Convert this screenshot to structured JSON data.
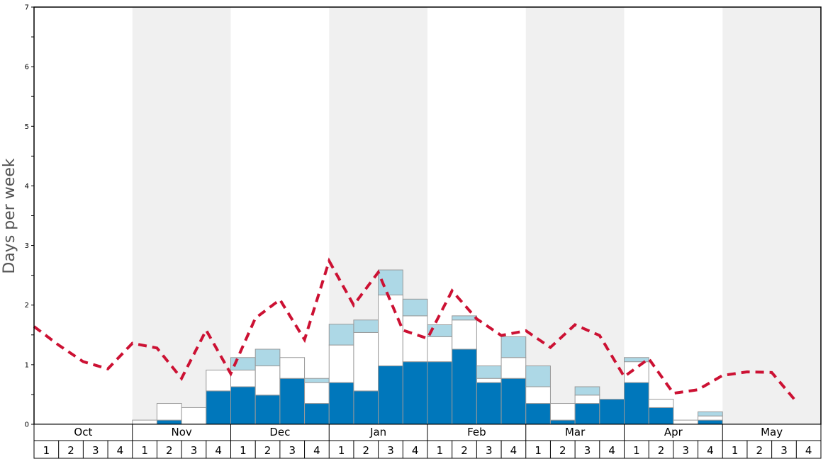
{
  "chart_data": {
    "type": "bar",
    "ylabel": "Days per week",
    "ylim": [
      0,
      7
    ],
    "yticks": [
      "0",
      "1",
      "2",
      "3",
      "4",
      "5",
      "6",
      "7"
    ],
    "months": [
      "Oct",
      "Nov",
      "Dec",
      "Jan",
      "Feb",
      "Mar",
      "Apr",
      "May"
    ],
    "week_labels": [
      "1",
      "2",
      "3",
      "4"
    ],
    "colors": {
      "bottom": "#0077bb",
      "middle": "#ffffff",
      "top": "#add8e6",
      "line": "#cc1133",
      "shade": "#f0f0f0"
    },
    "stacks": [
      [
        0,
        0,
        0
      ],
      [
        0,
        0,
        0
      ],
      [
        0,
        0,
        0
      ],
      [
        0,
        0,
        0
      ],
      [
        0,
        0.07,
        0
      ],
      [
        0.07,
        0.28,
        0
      ],
      [
        0,
        0.28,
        0
      ],
      [
        0.56,
        0.35,
        0
      ],
      [
        0.63,
        0.28,
        0.21
      ],
      [
        0.49,
        0.49,
        0.28
      ],
      [
        0.77,
        0.35,
        0
      ],
      [
        0.35,
        0.35,
        0.07
      ],
      [
        0.7,
        0.63,
        0.35
      ],
      [
        0.56,
        0.98,
        0.21
      ],
      [
        0.98,
        1.19,
        0.42
      ],
      [
        1.05,
        0.77,
        0.28
      ],
      [
        1.05,
        0.42,
        0.2
      ],
      [
        1.26,
        0.49,
        0.07
      ],
      [
        0.7,
        0.07,
        0.21
      ],
      [
        0.77,
        0.35,
        0.35
      ],
      [
        0.35,
        0.28,
        0.35
      ],
      [
        0.07,
        0.28,
        0
      ],
      [
        0.35,
        0.14,
        0.14
      ],
      [
        0.42,
        0,
        0
      ],
      [
        0.7,
        0.35,
        0.07
      ],
      [
        0.28,
        0.14,
        0
      ],
      [
        0,
        0.07,
        0
      ],
      [
        0.07,
        0.07,
        0.07
      ],
      [
        0,
        0,
        0
      ],
      [
        0,
        0,
        0
      ],
      [
        0,
        0,
        0
      ],
      [
        0,
        0,
        0
      ]
    ],
    "line_values": [
      1.64,
      1.33,
      1.05,
      0.93,
      1.36,
      1.28,
      0.77,
      1.58,
      0.85,
      1.78,
      2.09,
      1.42,
      2.74,
      2.0,
      2.55,
      1.58,
      1.44,
      2.24,
      1.77,
      1.49,
      1.57,
      1.29,
      1.67,
      1.49,
      0.8,
      1.1,
      0.52,
      0.58,
      0.82,
      0.88,
      0.87,
      0.38
    ]
  }
}
